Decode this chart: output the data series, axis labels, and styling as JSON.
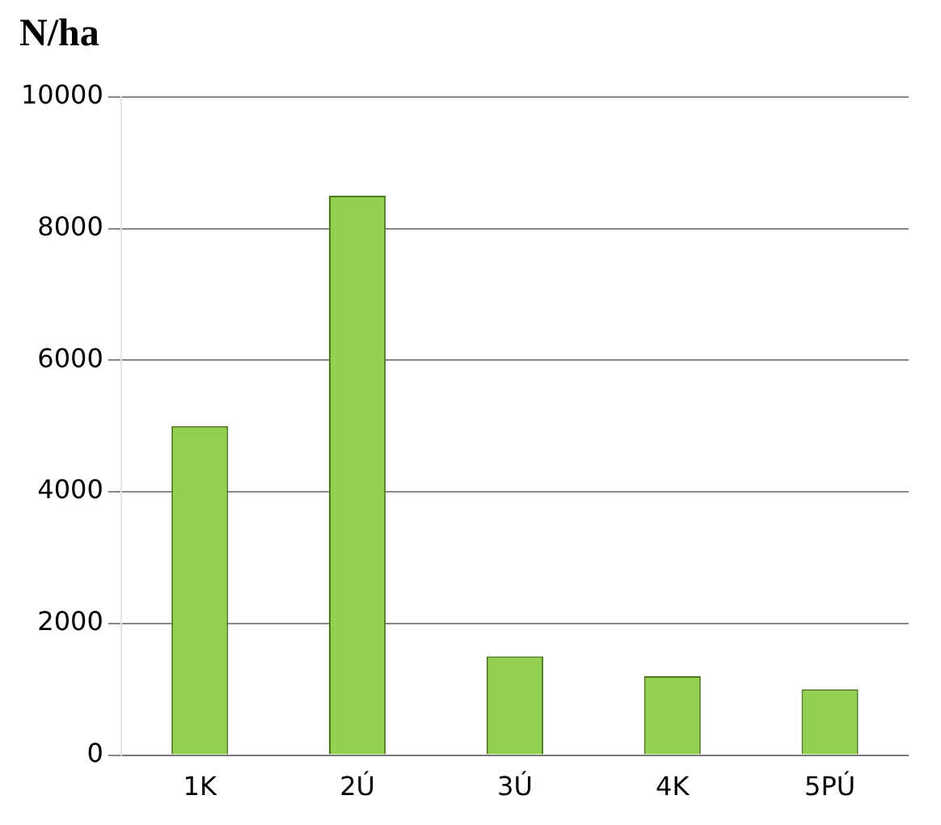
{
  "chart_data": {
    "type": "bar",
    "title": "N/ha",
    "categories": [
      "1K",
      "2Ú",
      "3Ú",
      "4K",
      "5PÚ"
    ],
    "values": [
      5000,
      8500,
      1500,
      1200,
      1000
    ],
    "color": "#92d050",
    "ylim": [
      0,
      10000
    ],
    "yticks": [
      0,
      2000,
      4000,
      6000,
      8000,
      10000
    ],
    "grid": "y"
  }
}
